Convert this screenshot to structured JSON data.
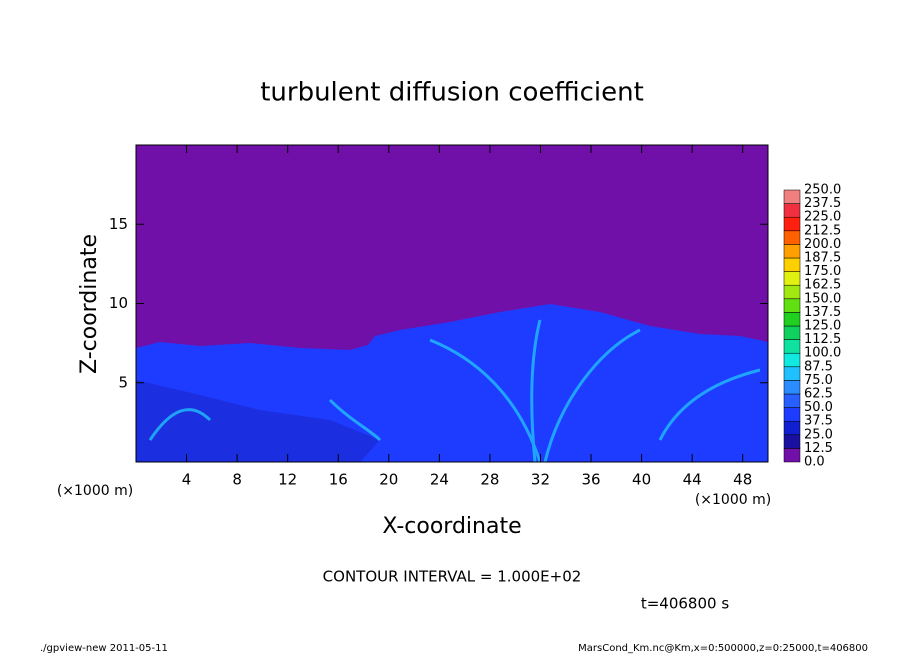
{
  "chart_data": {
    "type": "contour",
    "title": "turbulent diffusion coefficient",
    "x_label": "X-coordinate",
    "y_label": "Z-coordinate",
    "x_unit": "(×1000 m)",
    "y_unit": "(×1000 m)",
    "xlim": [
      0,
      50
    ],
    "xticks": [
      4,
      8,
      12,
      16,
      20,
      24,
      28,
      32,
      36,
      40,
      44,
      48
    ],
    "ylim": [
      0,
      20
    ],
    "yticks": [
      5,
      10,
      15
    ],
    "colorbar": {
      "levels": [
        {
          "value": 0,
          "label": "0.0"
        },
        12.5,
        {
          "value": 25,
          "label": "25.0"
        },
        37.5,
        {
          "value": 50,
          "label": "50.0"
        },
        62.5,
        {
          "value": 75,
          "label": "75.0"
        },
        87.5,
        {
          "value": 100,
          "label": "100.0"
        },
        112.5,
        {
          "value": 125,
          "label": "125.0"
        },
        137.5,
        {
          "value": 150,
          "label": "150.0"
        },
        162.5,
        {
          "value": 175,
          "label": "175.0"
        },
        187.5,
        {
          "value": 200,
          "label": "200.0"
        },
        212.5,
        {
          "value": 225,
          "label": "225.0"
        },
        237.5,
        {
          "value": 250,
          "label": "250.0"
        }
      ],
      "colors": [
        "#7010a8",
        "#1a10a0",
        "#1020d0",
        "#1e3cff",
        "#2860ff",
        "#2a8cff",
        "#20c0ff",
        "#10e8e0",
        "#10e0a0",
        "#10d060",
        "#20d020",
        "#60e010",
        "#a0e810",
        "#e0f010",
        "#ffd000",
        "#ffa000",
        "#ff6000",
        "#ff2010",
        "#f03040",
        "#f08080"
      ]
    },
    "annotations": [
      "CONTOUR INTERVAL = 1.000E+02",
      "t=406800 s"
    ],
    "footer_left": "./gpview-new  2011-05-11",
    "footer_right": "MarsCond_Km.nc@Km,x=0:500000,z=0:25000,t=406800"
  }
}
